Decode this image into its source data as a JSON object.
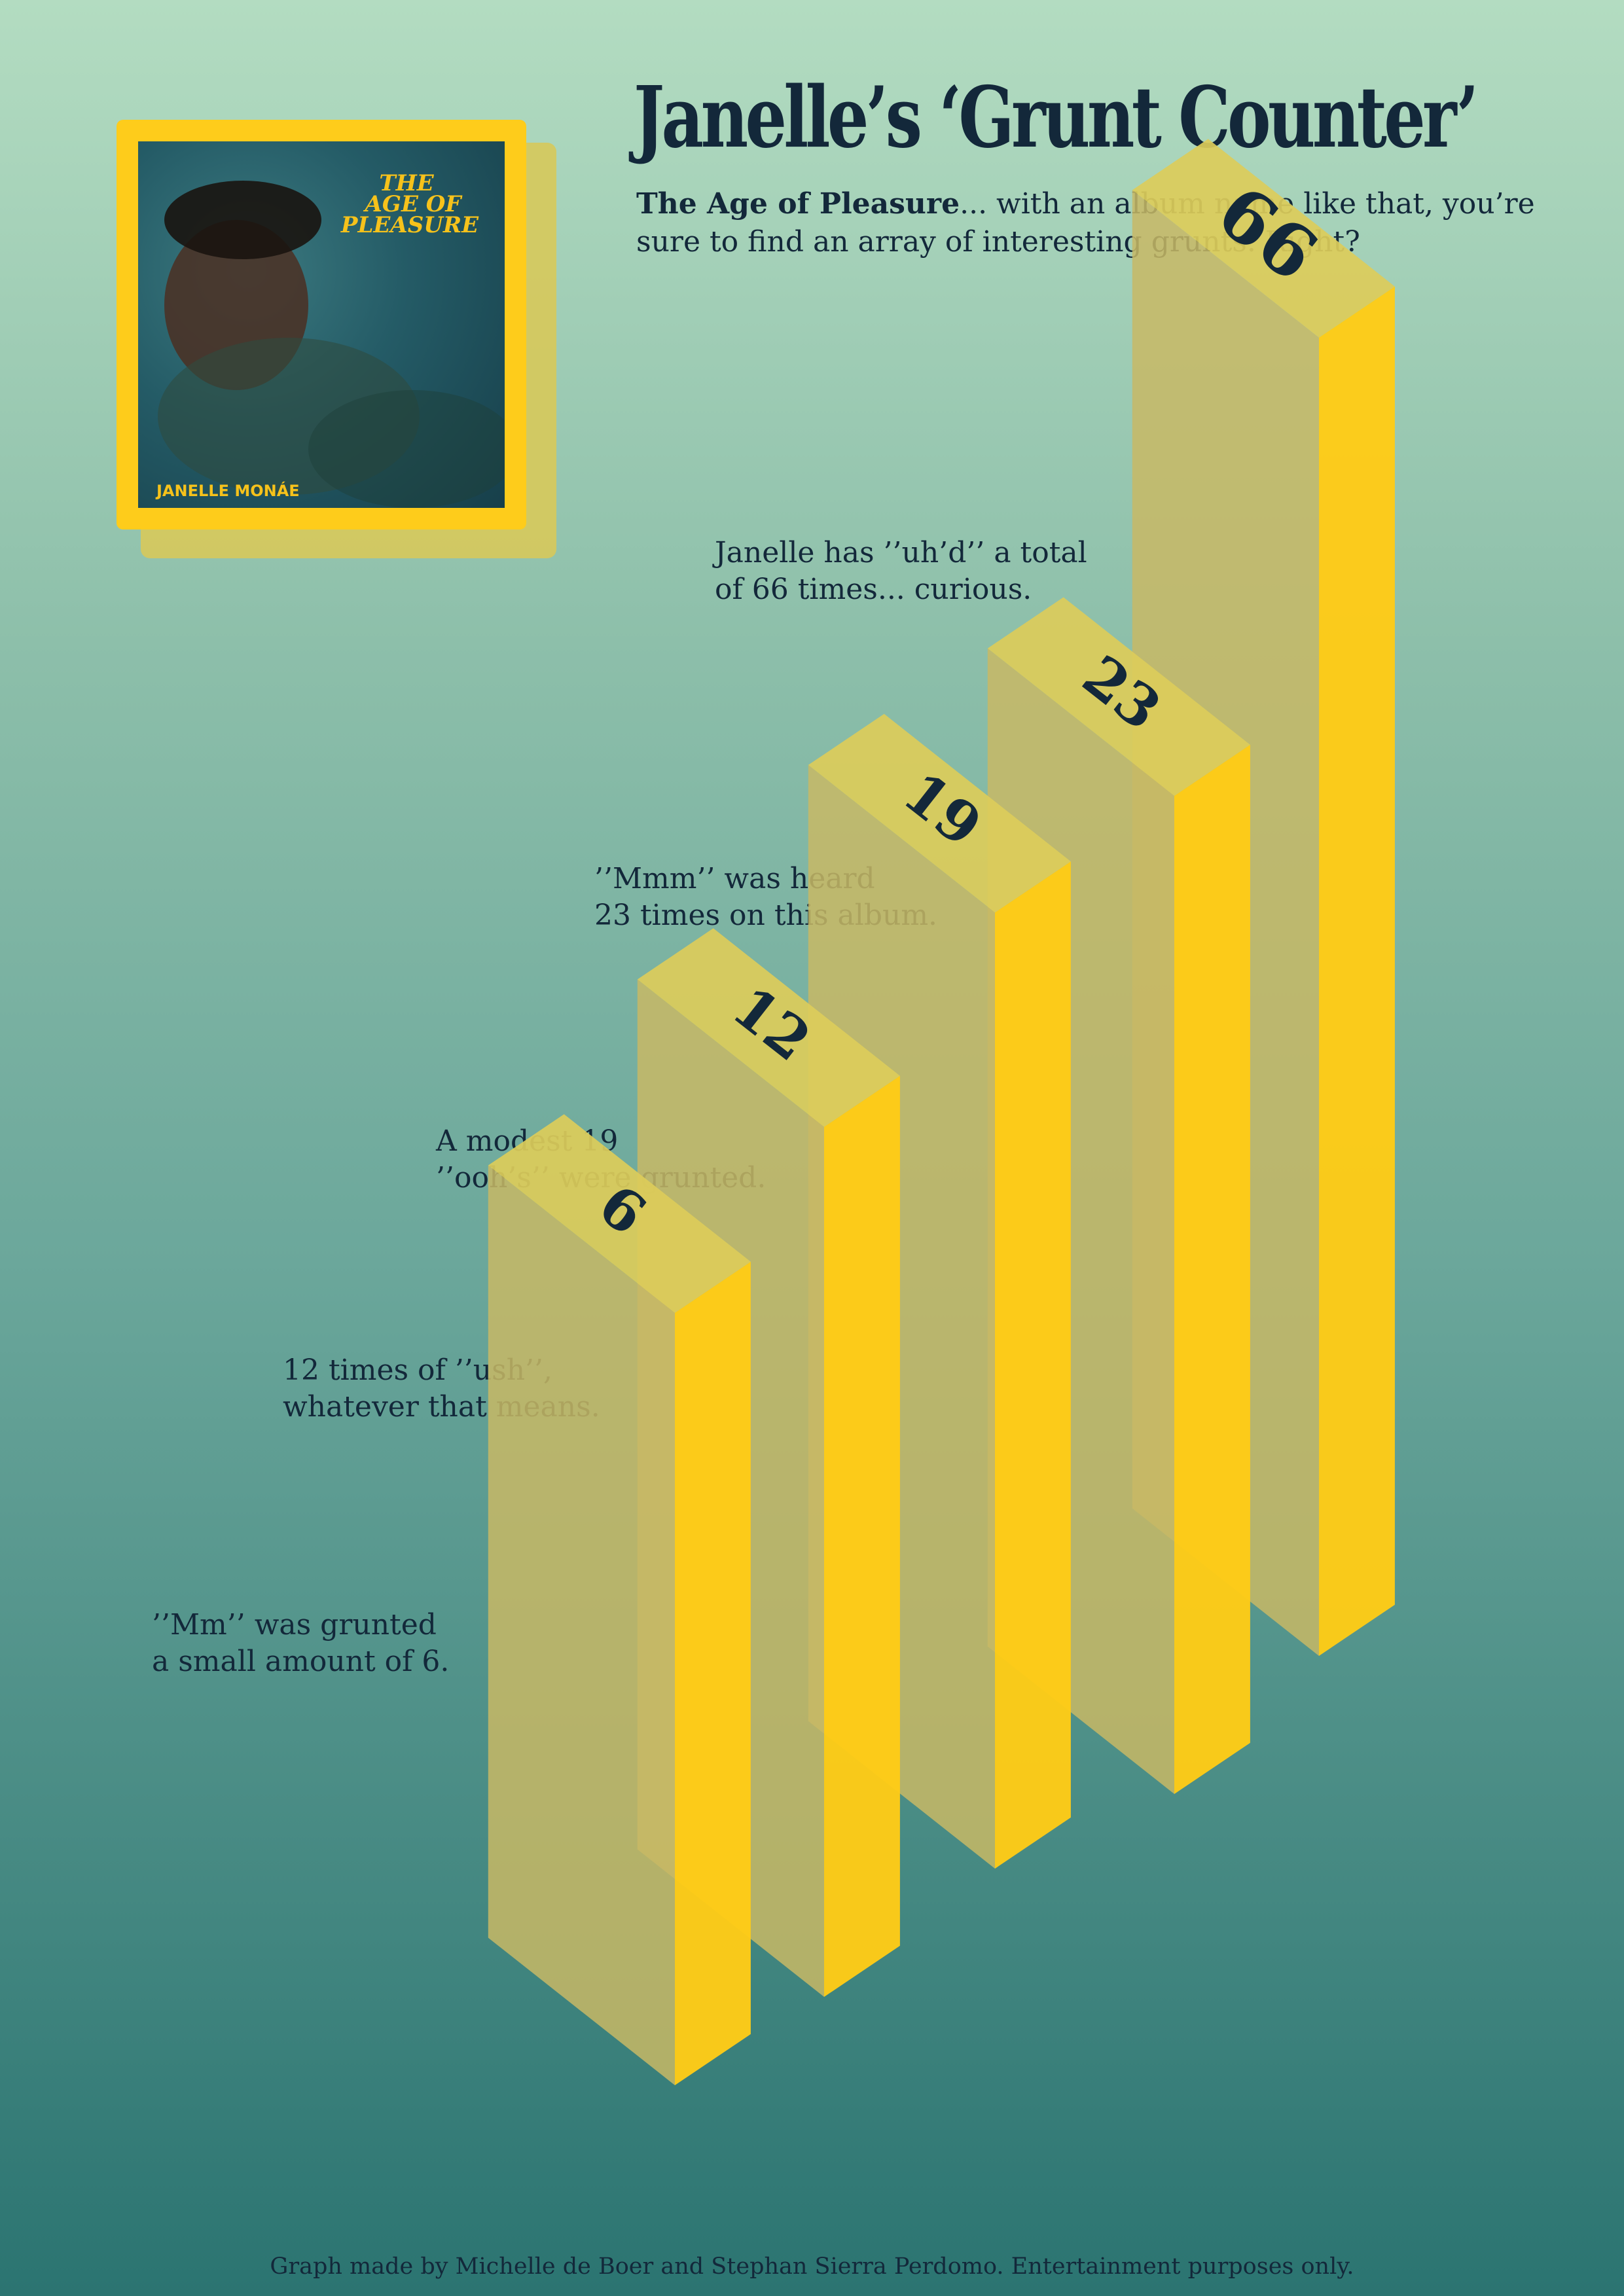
{
  "title": "Janelle’s ‘Grunt Counter’",
  "subtitle": {
    "bold": "The Age of Pleasure",
    "rest": "... with an album name like that, you’re sure to find an array of interesting grunts. Right?"
  },
  "album_cover": {
    "title_lines": [
      "THE",
      "AGE OF",
      "PLEASURE"
    ],
    "artist": "JANELLE MONÁE"
  },
  "colors": {
    "bar_front": "#c8b865",
    "bar_side": "#fecb17",
    "bar_top": "#dccc5a",
    "text": "#13283a"
  },
  "chart_data": {
    "type": "bar",
    "style": "3d-isometric",
    "categories": [
      "Mm",
      "ush",
      "ooh",
      "Mmm",
      "uh"
    ],
    "values": [
      6,
      12,
      19,
      23,
      66
    ],
    "value_labels": [
      "6",
      "12",
      "19",
      "23",
      "66"
    ],
    "annotations": [
      [
        "’’Mm’’ was grunted",
        "a small amount of 6."
      ],
      [
        "12 times of ’’ush’’,",
        "whatever that means."
      ],
      [
        "A modest 19",
        "’’ooh’s’’ were grunted."
      ],
      [
        "’’Mmm’’ was heard",
        "23 times on this album."
      ],
      [
        "Janelle has ’’uh’d’’ a total",
        "of 66 times... curious."
      ]
    ]
  },
  "footer": "Graph made by Michelle de Boer and Stephan Sierra Perdomo. Entertainment purposes only."
}
